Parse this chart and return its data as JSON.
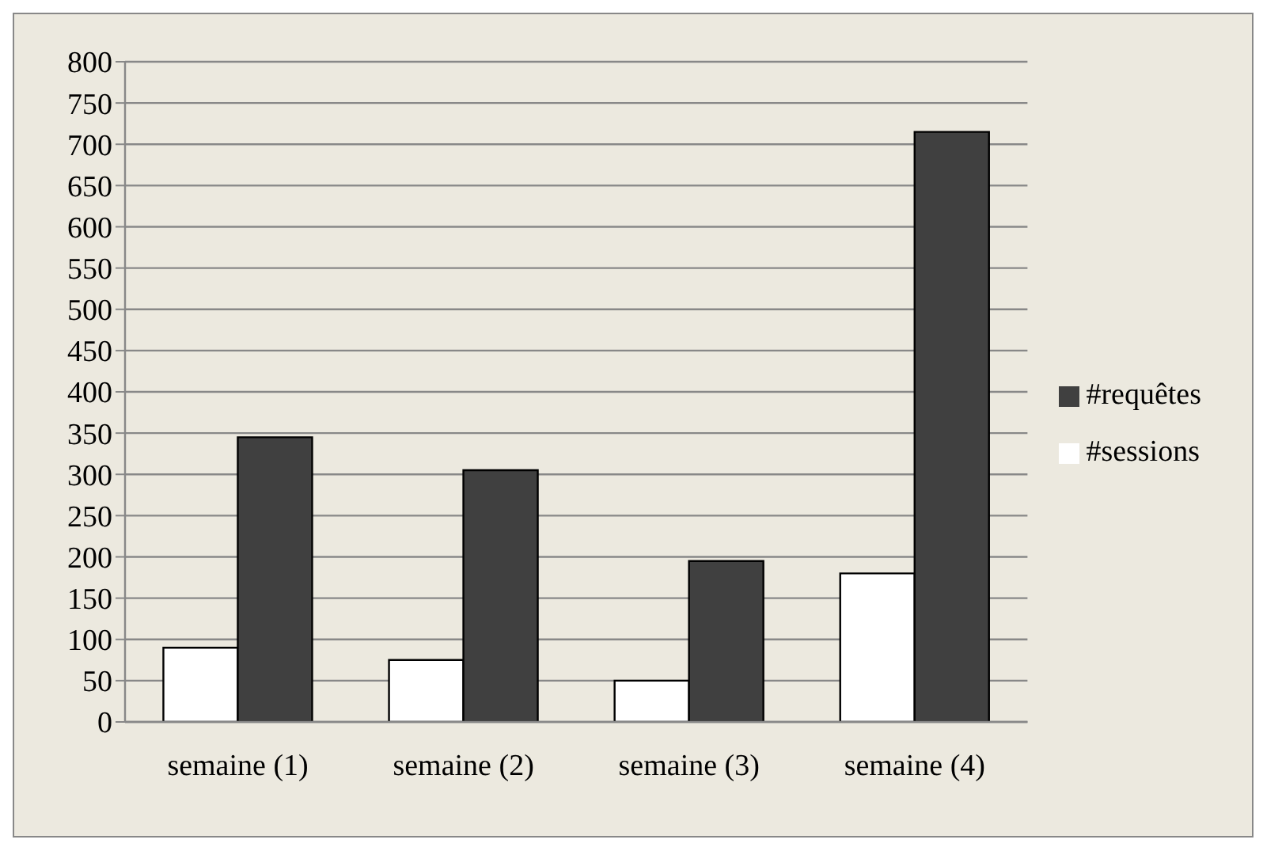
{
  "chart_data": {
    "type": "bar",
    "categories": [
      "semaine (1)",
      "semaine (2)",
      "semaine (3)",
      "semaine (4)"
    ],
    "series": [
      {
        "name": "#sessions",
        "color": "#ffffff",
        "values": [
          90,
          75,
          50,
          180
        ]
      },
      {
        "name": "#requêtes",
        "color": "#404040",
        "values": [
          345,
          305,
          195,
          715
        ]
      }
    ],
    "ylim": [
      0,
      800
    ],
    "yticks": [
      0,
      50,
      100,
      150,
      200,
      250,
      300,
      350,
      400,
      450,
      500,
      550,
      600,
      650,
      700,
      750,
      800
    ],
    "grid": "y",
    "legend": "right"
  }
}
